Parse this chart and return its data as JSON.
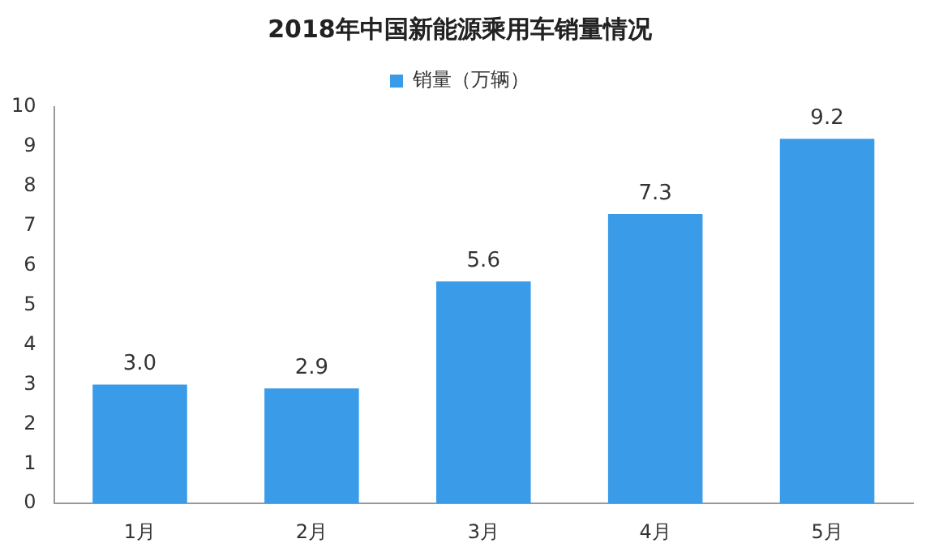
{
  "chart_data": {
    "type": "bar",
    "title": "2018年中国新能源乘用车销量情况",
    "categories": [
      "1月",
      "2月",
      "3月",
      "4月",
      "5月"
    ],
    "series": [
      {
        "name": "销量（万辆）",
        "color": "#3a9be9",
        "values": [
          3.0,
          2.9,
          5.6,
          7.3,
          9.2
        ],
        "value_labels": [
          "3.0",
          "2.9",
          "5.6",
          "7.3",
          "9.2"
        ]
      }
    ],
    "ylim": [
      0,
      10
    ],
    "yticks": [
      0,
      1,
      2,
      3,
      4,
      5,
      6,
      7,
      8,
      9,
      10
    ],
    "grid": false,
    "legend": "top"
  }
}
